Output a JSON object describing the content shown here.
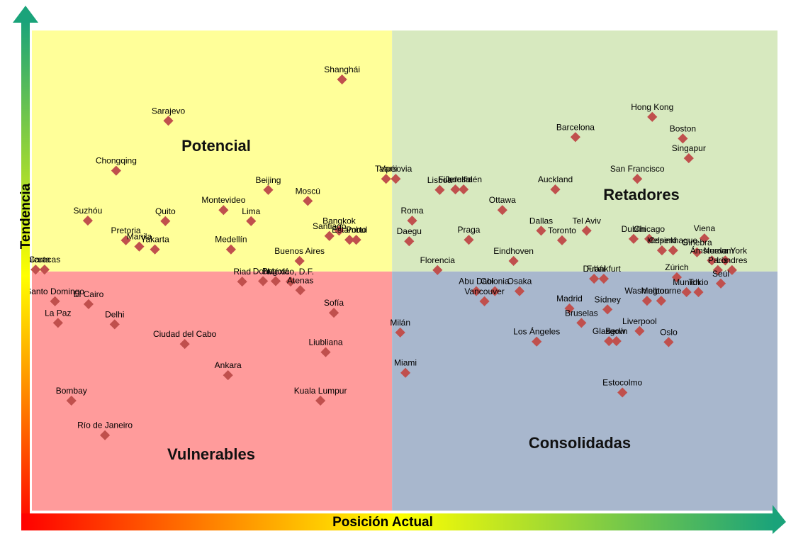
{
  "chart_data": {
    "type": "scatter",
    "x_label": "Posición Actual",
    "y_label": "Tendencia",
    "xlim": [
      0,
      100
    ],
    "ylim": [
      0,
      100
    ],
    "x_split": 48.3,
    "y_split": 49.8,
    "quadrants": [
      {
        "label": "Potencial",
        "color": "#ffff99"
      },
      {
        "label": "Retadores",
        "color": "#d7e9bf"
      },
      {
        "label": "Vulnerables",
        "color": "#ff9b9b"
      },
      {
        "label": "Consolidadas",
        "color": "#a8b7cd"
      }
    ],
    "series": [
      {
        "color": "#c0504d",
        "labels": [
          "Shanghái",
          "Sarajevo",
          "Chongqing",
          "Beijing",
          "Moscú",
          "Montevideo",
          "Lima",
          "Suzhóu",
          "Quito",
          "Bangkok",
          "Santiago",
          "Porto",
          "Estambul",
          "Pretoria",
          "Manila",
          "Yakarta",
          "Medellín",
          "Buenos Aires",
          "Calcuta",
          "Caracas",
          "Riad",
          "Doha",
          "Bogotá",
          "México, D.F.",
          "Atenas",
          "Santo Domingo",
          "El Cairo",
          "La Paz",
          "Delhi",
          "Sofía",
          "Ciudad del Cabo",
          "Liubliana",
          "Ankara",
          "Kuala Lumpur",
          "Bombay",
          "Río de Janeiro",
          "Taipéi",
          "Varsovia",
          "Lisboa",
          "Filadelfia",
          "Jerusalén",
          "Roma",
          "Daegu",
          "Praga",
          "Ottawa",
          "Auckland",
          "San Francisco",
          "Barcelona",
          "Hong Kong",
          "Boston",
          "Singapur",
          "Dallas",
          "Toronto",
          "Tel Aviv",
          "Dublín",
          "Chicago",
          "Viena",
          "Helsinki",
          "Copenhague",
          "Ginebra",
          "Nueva York",
          "Ámsterdam",
          "Eindhoven",
          "Florencia",
          "Dubái",
          "Fránkfurt",
          "Zúrich",
          "París",
          "Londres",
          "Munich",
          "Seúl",
          "Tokio",
          "Washington",
          "Melbourne",
          "Abu Dabi",
          "Colonia",
          "Osaka",
          "Vancouver",
          "Madrid",
          "Sídney",
          "Milán",
          "Bruselas",
          "Liverpool",
          "Los Ángeles",
          "Glasgow",
          "Berlín",
          "Oslo",
          "Miami",
          "Estocolmo"
        ],
        "x": [
          41.6,
          18.3,
          11.3,
          31.7,
          37.0,
          25.7,
          29.4,
          7.5,
          17.9,
          41.2,
          39.9,
          43.5,
          42.6,
          12.6,
          14.4,
          16.5,
          26.7,
          35.9,
          0.5,
          1.7,
          28.2,
          31.0,
          32.7,
          34.7,
          36.0,
          3.1,
          7.6,
          3.5,
          11.1,
          40.5,
          20.5,
          39.4,
          26.3,
          38.7,
          5.3,
          9.8,
          47.5,
          48.8,
          54.7,
          56.8,
          57.9,
          51.0,
          50.6,
          58.6,
          63.1,
          70.2,
          81.2,
          72.9,
          83.2,
          87.3,
          88.1,
          68.3,
          71.1,
          74.4,
          80.7,
          82.8,
          90.2,
          84.5,
          86.0,
          89.2,
          93.0,
          91.2,
          64.6,
          54.4,
          75.4,
          76.7,
          86.5,
          92.0,
          93.9,
          87.8,
          92.4,
          89.4,
          82.5,
          84.4,
          59.6,
          62.1,
          65.4,
          60.7,
          72.1,
          77.2,
          49.4,
          73.7,
          81.5,
          67.7,
          77.4,
          78.4,
          85.4,
          50.1,
          79.2
        ],
        "values": [
          89.8,
          81.2,
          70.8,
          66.8,
          64.5,
          62.6,
          60.3,
          60.4,
          60.3,
          58.3,
          57.2,
          56.4,
          56.4,
          56.3,
          55.0,
          54.4,
          54.4,
          52.0,
          50.2,
          50.2,
          47.7,
          47.8,
          47.8,
          47.7,
          45.9,
          43.6,
          43.0,
          39.1,
          38.8,
          41.2,
          34.7,
          33.0,
          28.2,
          22.9,
          22.9,
          15.7,
          69.1,
          69.1,
          66.8,
          66.9,
          66.9,
          60.4,
          56.1,
          56.4,
          62.6,
          66.9,
          69.1,
          77.8,
          82.0,
          77.5,
          73.4,
          58.3,
          56.3,
          58.3,
          56.6,
          56.6,
          56.7,
          54.2,
          54.2,
          53.8,
          52.1,
          52.1,
          52.0,
          50.1,
          48.3,
          48.3,
          48.6,
          50.1,
          50.1,
          45.5,
          47.3,
          45.5,
          43.7,
          43.7,
          45.7,
          45.7,
          45.7,
          43.6,
          42.1,
          41.9,
          37.1,
          39.1,
          37.4,
          35.2,
          35.3,
          35.3,
          35.1,
          28.7,
          24.6
        ]
      }
    ]
  }
}
